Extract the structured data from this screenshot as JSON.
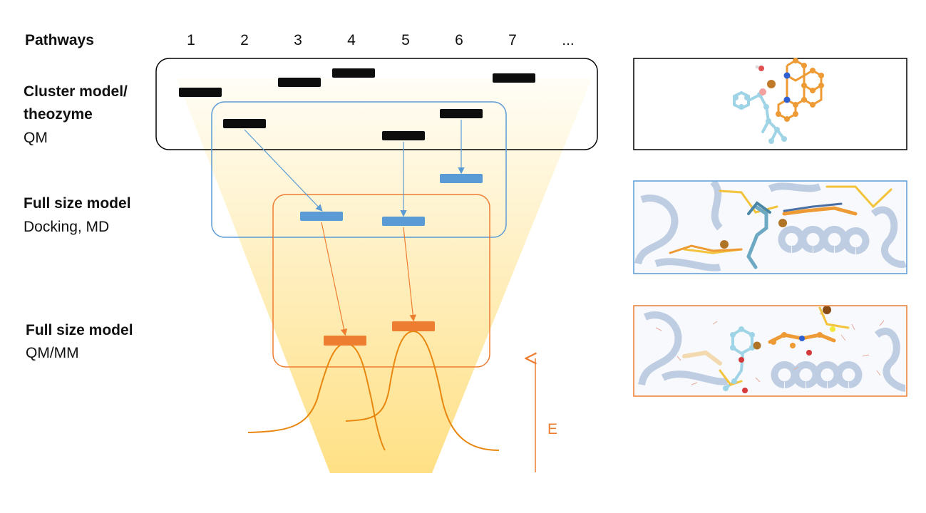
{
  "header": {
    "pathways_label": "Pathways",
    "pathway_numbers": [
      "1",
      "2",
      "3",
      "4",
      "5",
      "6",
      "7",
      "..."
    ]
  },
  "rows": {
    "cluster": {
      "title_line1": "Cluster model/",
      "title_line2": "theozyme",
      "method": "QM"
    },
    "full_dock": {
      "title": "Full size model",
      "method": "Docking, MD"
    },
    "full_qmmm": {
      "title": "Full size model",
      "method": "QM/MM"
    }
  },
  "energy_axis": {
    "label": "E"
  },
  "colors": {
    "funnel_top": "#fffdf6",
    "funnel_bottom": "#ffe085",
    "cluster_box": "#000000",
    "docking_box": "#5b9bd5",
    "qmmm_box": "#ed7d31",
    "level_black": "#0d0d0d",
    "level_blue": "#5b9bd5",
    "level_orange": "#ed7d31",
    "curve": "#e8870f"
  },
  "panels": [
    {
      "name": "cluster-structure-panel",
      "border": "#000000"
    },
    {
      "name": "docking-structure-panel",
      "border": "#5b9bd5"
    },
    {
      "name": "qmmm-structure-panel",
      "border": "#ed7d31"
    }
  ]
}
